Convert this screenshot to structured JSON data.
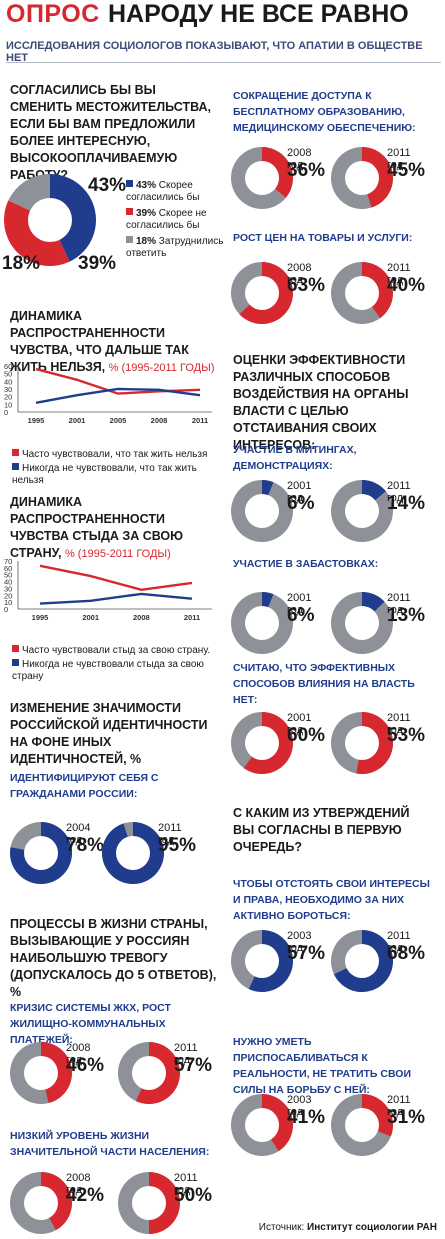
{
  "header": {
    "opros": "ОПРОС",
    "title": "НАРОДУ НЕ ВСЕ РАВНО",
    "subtitle": "ИССЛЕДОВАНИЯ СОЦИОЛОГОВ ПОКАЗЫВАЮТ, ЧТО АПАТИИ В ОБЩЕСТВЕ НЕТ"
  },
  "colors": {
    "red": "#d7282f",
    "blue": "#1f3d8c",
    "gray": "#8e9298",
    "text": "#1a1a1a"
  },
  "relocate": {
    "title": "СОГЛАСИЛИСЬ БЫ ВЫ СМЕНИТЬ МЕСТОЖИТЕЛЬСТВА, ЕСЛИ БЫ ВАМ ПРЕДЛОЖИЛИ БОЛЕЕ ИНТЕРЕСНУЮ, ВЫСОКООПЛАЧИВАЕМУЮ РАБОТУ?",
    "p43": "43%",
    "p39": "39%",
    "p18": "18%",
    "legend": [
      {
        "pct": "43%",
        "text": "Скорее согласились бы"
      },
      {
        "pct": "39%",
        "text": "Скорее не согласились бы"
      },
      {
        "pct": "18%",
        "text": "Затруднились ответить"
      }
    ]
  },
  "line1": {
    "title": "ДИНАМИКА РАСПРОСТРАНЕННОСТИ ЧУВСТВА, ЧТО ДАЛЬШЕ ТАК ЖИТЬ НЕЛЬЗЯ,",
    "unit": "% (1995-2011 ГОДЫ)",
    "legend": [
      "Часто чувствовали, что так жить нельзя",
      "Никогда не чувствовали, что так жить нельзя"
    ]
  },
  "line2": {
    "title": "ДИНАМИКА РАСПРОСТРАНЕННОСТИ ЧУВСТВА СТЫДА ЗА СВОЮ СТРАНУ,",
    "unit": "% (1995-2011 ГОДЫ)",
    "legend": [
      "Часто чувствовали стыд за свою страну.",
      "Никогда не чувствовали стыда за свою страну"
    ]
  },
  "identity": {
    "title": "ИЗМЕНЕНИЕ ЗНАЧИМОСТИ РОССИЙСКОЙ ИДЕНТИЧНОСТИ НА ФОНЕ ИНЫХ ИДЕНТИЧНОСТЕЙ, %",
    "sub": "ИДЕНТИФИЦИРУЮТ СЕБЯ С ГРАЖДАНАМИ РОССИИ:"
  },
  "concern": {
    "title": "ПРОЦЕССЫ В ЖИЗНИ СТРАНЫ, ВЫЗЫВАЮЩИЕ У РОССИЯН НАИБОЛЬШУЮ ТРЕВОГУ (ДОПУСКАЛОСЬ ДО 5 ОТВЕТОВ), %",
    "sub1": "КРИЗИС СИСТЕМЫ ЖКХ, РОСТ ЖИЛИЩНО-КОММУНАЛЬНЫХ ПЛАТЕЖЕЙ:",
    "sub2": "НИЗКИЙ УРОВЕНЬ ЖИЗНИ ЗНАЧИТЕЛЬНОЙ ЧАСТИ НАСЕЛЕНИЯ:",
    "sub3": "СОКРАЩЕНИЕ ДОСТУПА К БЕСПЛАТНОМУ ОБРАЗОВАНИЮ, МЕДИЦИНСКОМУ ОБЕСПЕЧЕНИЮ:",
    "sub4": "РОСТ ЦЕН НА ТОВАРЫ И УСЛУГИ:"
  },
  "efficiency": {
    "title": "ОЦЕНКИ ЭФФЕКТИВНОСТИ РАЗЛИЧНЫХ СПОСОБОВ ВОЗДЕЙСТВИЯ НА ОРГАНЫ ВЛАСТИ С ЦЕЛЬЮ ОТСТАИВАНИЯ СВОИХ ИНТЕРЕСОВ:",
    "sub1": "УЧАСТИЕ В МИТИНГАХ, ДЕМОНСТРАЦИЯХ:",
    "sub2": "УЧАСТИЕ В ЗАБАСТОВКАХ:",
    "sub3": "СЧИТАЮ, ЧТО ЭФФЕКТИВНЫХ СПОСОБОВ ВЛИЯНИЯ НА ВЛАСТЬ НЕТ:"
  },
  "statements": {
    "title": "С КАКИМ ИЗ УТВЕРЖДЕНИЙ ВЫ СОГЛАСНЫ В ПЕРВУЮ ОЧЕРЕДЬ?",
    "sub1": "ЧТОБЫ ОТСТОЯТЬ СВОИ ИНТЕРЕСЫ И ПРАВА, НЕОБХОДИМО ЗА НИХ АКТИВНО БОРОТЬСЯ:",
    "sub2": "НУЖНО УМЕТЬ ПРИСПОСАБЛИВАТЬСЯ К РЕАЛЬНОСТИ, НЕ ТРАТИТЬ СВОИ СИЛЫ НА БОРЬБУ С НЕЙ:"
  },
  "source": {
    "label": "Источник:",
    "value": "Институт социологии РАН"
  },
  "chart_data": [
    {
      "type": "pie",
      "title": "СОГЛАСИЛИСЬ БЫ ВЫ СМЕНИТЬ МЕСТОЖИТЕЛЬСТВА, ЕСЛИ БЫ ВАМ ПРЕДЛОЖИЛИ БОЛЕЕ ИНТЕРЕСНУЮ, ВЫСОКООПЛАЧИВАЕМУЮ РАБОТУ?",
      "categories": [
        "Скорее согласились бы",
        "Скорее не согласились бы",
        "Затруднились ответить"
      ],
      "values": [
        43,
        39,
        18
      ]
    },
    {
      "type": "line",
      "title": "ДИНАМИКА РАСПРОСТРАНЕННОСТИ ЧУВСТВА, ЧТО ДАЛЬШЕ ТАК ЖИТЬ НЕЛЬЗЯ, % (1995-2011 ГОДЫ)",
      "x": [
        "1995",
        "2001",
        "2005",
        "2008",
        "2011"
      ],
      "ylim": [
        0,
        60
      ],
      "yticks": [
        0,
        10,
        20,
        30,
        40,
        50,
        60
      ],
      "series": [
        {
          "name": "Часто чувствовали, что так жить нельзя",
          "values": [
            56,
            42,
            24,
            27,
            29
          ]
        },
        {
          "name": "Никогда не чувствовали, что так жить нельзя",
          "values": [
            12,
            22,
            30,
            29,
            22
          ]
        }
      ]
    },
    {
      "type": "line",
      "title": "ДИНАМИКА РАСПРОСТРАНЕННОСТИ ЧУВСТВА СТЫДА ЗА СВОЮ СТРАНУ, % (1995-2011 ГОДЫ)",
      "x": [
        "1995",
        "2001",
        "2008",
        "2011"
      ],
      "ylim": [
        0,
        70
      ],
      "yticks": [
        0,
        10,
        20,
        30,
        40,
        50,
        60,
        70
      ],
      "series": [
        {
          "name": "Часто чувствовали стыд за свою страну.",
          "values": [
            63,
            48,
            28,
            38
          ]
        },
        {
          "name": "Никогда не чувствовали стыда за свою страну",
          "values": [
            8,
            12,
            22,
            15
          ]
        }
      ]
    },
    {
      "type": "pie",
      "title": "ИДЕНТИФИЦИРУЮТ СЕБЯ С ГРАЖДАНАМИ РОССИИ:",
      "categories": [
        "2004 год",
        "2011 год"
      ],
      "values": [
        78,
        95
      ]
    },
    {
      "type": "pie",
      "title": "КРИЗИС СИСТЕМЫ ЖКХ, РОСТ ЖИЛИЩНО-КОММУНАЛЬНЫХ ПЛАТЕЖЕЙ:",
      "categories": [
        "2008 год",
        "2011 год"
      ],
      "values": [
        46,
        57
      ]
    },
    {
      "type": "pie",
      "title": "НИЗКИЙ УРОВЕНЬ ЖИЗНИ ЗНАЧИТЕЛЬНОЙ ЧАСТИ НАСЕЛЕНИЯ:",
      "categories": [
        "2008 год",
        "2011 год"
      ],
      "values": [
        42,
        50
      ]
    },
    {
      "type": "pie",
      "title": "СОКРАЩЕНИЕ ДОСТУПА К БЕСПЛАТНОМУ ОБРАЗОВАНИЮ, МЕДИЦИНСКОМУ ОБЕСПЕЧЕНИЮ:",
      "categories": [
        "2008 год",
        "2011 год"
      ],
      "values": [
        36,
        45
      ]
    },
    {
      "type": "pie",
      "title": "РОСТ ЦЕН НА ТОВАРЫ И УСЛУГИ:",
      "categories": [
        "2008 год",
        "2011 год"
      ],
      "values": [
        63,
        40
      ]
    },
    {
      "type": "pie",
      "title": "УЧАСТИЕ В МИТИНГАХ, ДЕМОНСТРАЦИЯХ:",
      "categories": [
        "2001 год",
        "2011 год"
      ],
      "values": [
        6,
        14
      ]
    },
    {
      "type": "pie",
      "title": "УЧАСТИЕ В ЗАБАСТОВКАХ:",
      "categories": [
        "2001 год",
        "2011 год"
      ],
      "values": [
        6,
        13
      ]
    },
    {
      "type": "pie",
      "title": "СЧИТАЮ, ЧТО ЭФФЕКТИВНЫХ СПОСОБОВ ВЛИЯНИЯ НА ВЛАСТЬ НЕТ:",
      "categories": [
        "2001 год",
        "2011 год"
      ],
      "values": [
        60,
        53
      ]
    },
    {
      "type": "pie",
      "title": "ЧТОБЫ ОТСТОЯТЬ СВОИ ИНТЕРЕСЫ И ПРАВА, НЕОБХОДИМО ЗА НИХ АКТИВНО БОРОТЬСЯ:",
      "categories": [
        "2003 год",
        "2011 год"
      ],
      "values": [
        57,
        68
      ]
    },
    {
      "type": "pie",
      "title": "НУЖНО УМЕТЬ ПРИСПОСАБЛИВАТЬСЯ К РЕАЛЬНОСТИ, НЕ ТРАТИТЬ СВОИ СИЛЫ НА БОРЬБУ С НЕЙ:",
      "categories": [
        "2003 год",
        "2011 год"
      ],
      "values": [
        41,
        31
      ]
    }
  ]
}
